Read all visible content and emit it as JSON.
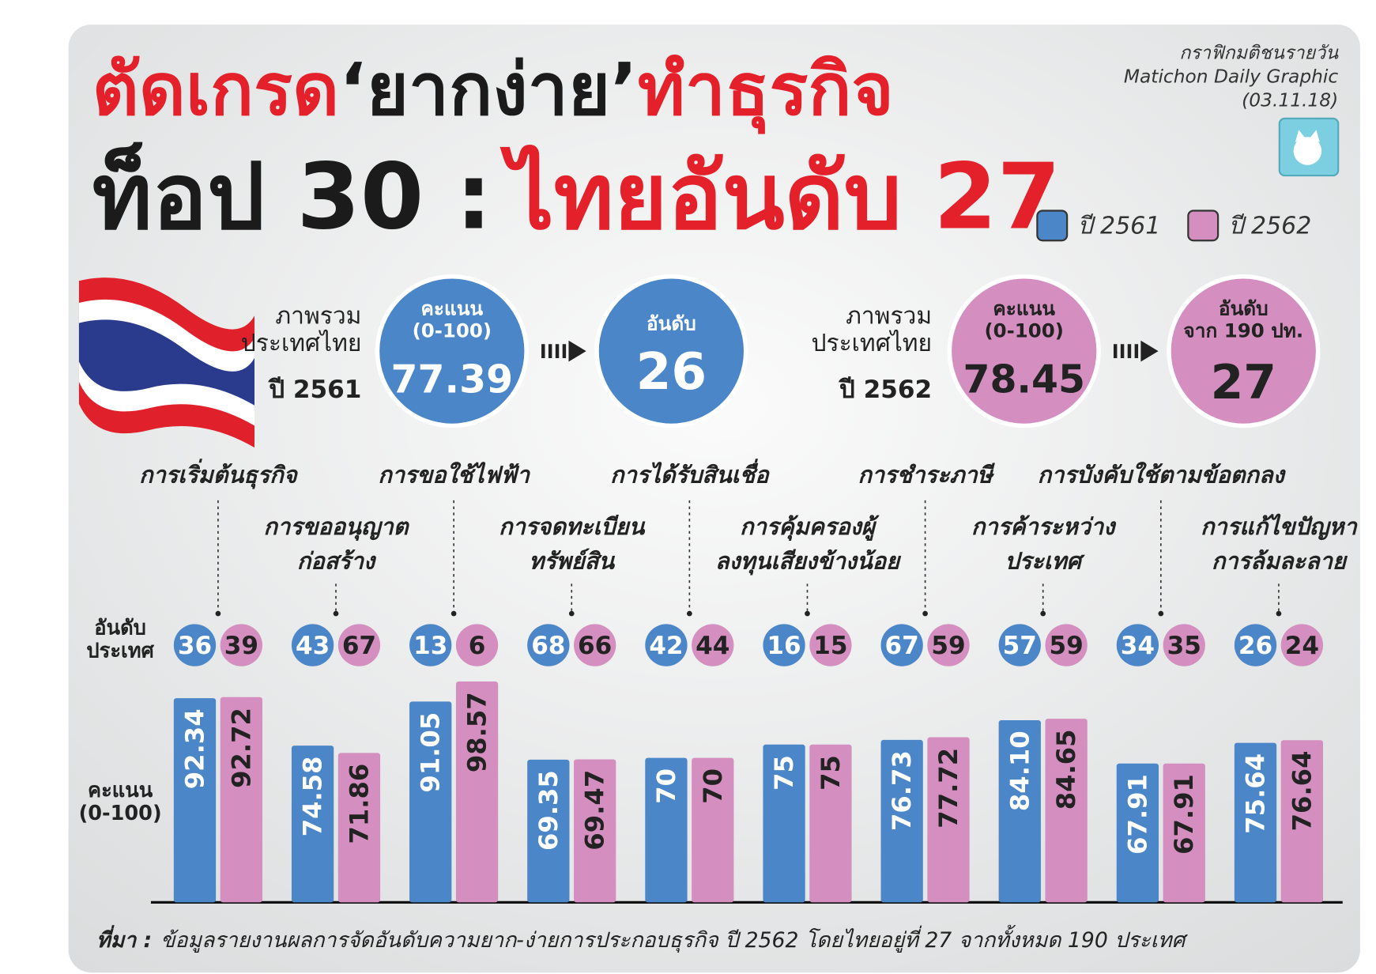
{
  "header": {
    "title_parts_1": [
      "ตัดเกรด",
      "‘ยากง่าย’",
      "ทำธุรกิจ"
    ],
    "title_parts_2": [
      "ท็อป 30 :",
      "ไทยอันดับ 27"
    ],
    "credit": [
      "กราฟิกมติชนรายวัน",
      "Matichon Daily Graphic",
      "(03.11.18)"
    ]
  },
  "summary": [
    {
      "label": "ภาพรวม\nประเทศไทย",
      "year": "ปี 2561",
      "score_label": "คะแนน\n(0-100)",
      "score": 77.39,
      "rank_label": "อันดับ",
      "rank": 26
    },
    {
      "label": "ภาพรวม\nประเทศไทย",
      "year": "ปี 2562",
      "score_label": "คะแนน\n(0-100)",
      "score": 78.45,
      "rank_label": "อันดับ\nจาก 190 ปท.",
      "rank": 27
    }
  ],
  "chart_data": {
    "type": "bar",
    "categories": [
      "การเริ่มต้นธุรกิจ",
      "การขออนุญาต\nก่อสร้าง",
      "การขอใช้ไฟฟ้า",
      "การจดทะเบียน\nทรัพย์สิน",
      "การได้รับสินเชื่อ",
      "การคุ้มครองผู้\nลงทุนเสียงข้างน้อย",
      "การชำระภาษี",
      "การค้าระหว่าง\nประเทศ",
      "การบังคับใช้ตามข้อตกลง",
      "การแก้ไขปัญหา\nการล้มละลาย"
    ],
    "series": [
      {
        "name": "ปี 2561",
        "color": "#4a86c8",
        "values": [
          92.34,
          74.58,
          91.05,
          69.35,
          70,
          75,
          76.73,
          84.1,
          67.91,
          75.64
        ],
        "value_labels": [
          "92.34",
          "74.58",
          "91.05",
          "69.35",
          "70",
          "75",
          "76.73",
          "84.10",
          "67.91",
          "75.64"
        ],
        "ranks": [
          36,
          43,
          13,
          68,
          42,
          16,
          67,
          57,
          34,
          26
        ]
      },
      {
        "name": "ปี 2562",
        "color": "#d48fc0",
        "values": [
          92.72,
          71.86,
          98.57,
          69.47,
          70,
          75,
          77.72,
          84.65,
          67.91,
          76.64
        ],
        "value_labels": [
          "92.72",
          "71.86",
          "98.57",
          "69.47",
          "70",
          "75",
          "77.72",
          "84.65",
          "67.91",
          "76.64"
        ],
        "ranks": [
          39,
          67,
          6,
          66,
          44,
          15,
          59,
          59,
          35,
          24
        ]
      }
    ],
    "row_labels": [
      "อันดับ\nประเทศ",
      "คะแนน\n(0-100)"
    ],
    "ylim": [
      16,
      100
    ]
  },
  "source": {
    "label": "ที่มา :",
    "text": "ข้อมูลรายงานผลการจัดอันดับความยาก-ง่ายการประกอบธุรกิจ ปี 2562 โดยไทยอยู่ที่ 27 จากทั้งหมด 190 ประเทศ"
  }
}
